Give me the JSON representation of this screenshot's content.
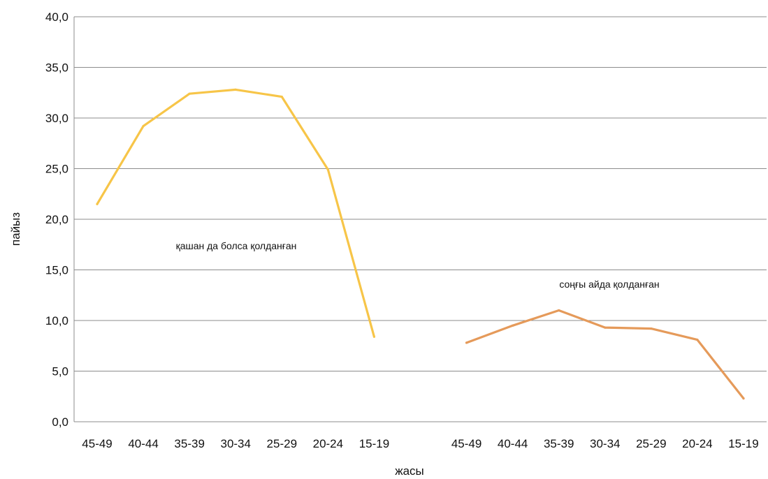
{
  "chart_data": {
    "type": "line",
    "xlabel": "жасы",
    "ylabel": "пайыз",
    "ylim": [
      0,
      40
    ],
    "yticks": [
      "0,0",
      "5,0",
      "10,0",
      "15,0",
      "20,0",
      "25,0",
      "30,0",
      "35,0",
      "40,0"
    ],
    "categories": [
      "45-49",
      "40-44",
      "35-39",
      "30-34",
      "25-29",
      "20-24",
      "15-19",
      "",
      "45-49",
      "40-44",
      "35-39",
      "30-34",
      "25-29",
      "20-24",
      "15-19"
    ],
    "grid": true,
    "legend": "none",
    "series": [
      {
        "name": "қашан да болса қолданған",
        "color": "#f7c548",
        "values": [
          21.5,
          29.2,
          32.4,
          32.8,
          32.1,
          24.9,
          8.4,
          null,
          null,
          null,
          null,
          null,
          null,
          null,
          null
        ]
      },
      {
        "name": "соңғы айда қолданған",
        "color": "#e59a5a",
        "values": [
          null,
          null,
          null,
          null,
          null,
          null,
          null,
          null,
          7.8,
          9.5,
          11.0,
          9.3,
          9.2,
          8.1,
          2.3
        ]
      }
    ]
  }
}
